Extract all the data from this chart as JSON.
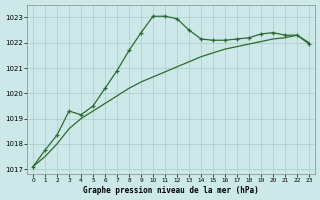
{
  "xlabel": "Graphe pression niveau de la mer (hPa)",
  "bg_color": "#cce8e8",
  "grid_color": "#aacccc",
  "line_color": "#2d6b2d",
  "ylim": [
    1016.8,
    1023.5
  ],
  "yticks": [
    1017,
    1018,
    1019,
    1020,
    1021,
    1022,
    1023
  ],
  "xlim": [
    -0.5,
    23.5
  ],
  "xticks": [
    0,
    1,
    2,
    3,
    4,
    5,
    6,
    7,
    8,
    9,
    10,
    11,
    12,
    13,
    14,
    15,
    16,
    17,
    18,
    19,
    20,
    21,
    22,
    23
  ],
  "series1_x": [
    0,
    1,
    2,
    3,
    4,
    5,
    6,
    7,
    8,
    9,
    10,
    11,
    12,
    13,
    14,
    15,
    16,
    17,
    18,
    19,
    20,
    21,
    22,
    23
  ],
  "series1_y": [
    1017.1,
    1017.75,
    1018.35,
    1019.3,
    1019.15,
    1019.5,
    1020.2,
    1020.9,
    1021.7,
    1022.4,
    1023.05,
    1023.05,
    1022.95,
    1022.5,
    1022.15,
    1022.1,
    1022.1,
    1022.15,
    1022.2,
    1022.35,
    1022.4,
    1022.3,
    1022.3,
    1021.95
  ],
  "series2_x": [
    0,
    1,
    2,
    3,
    4,
    5,
    6,
    7,
    8,
    9,
    10,
    11,
    12,
    13,
    14,
    15,
    16,
    17,
    18,
    19,
    20,
    21,
    22,
    23
  ],
  "series2_y": [
    1017.1,
    1017.5,
    1018.0,
    1018.6,
    1019.0,
    1019.3,
    1019.6,
    1019.9,
    1020.2,
    1020.45,
    1020.65,
    1020.85,
    1021.05,
    1021.25,
    1021.45,
    1021.6,
    1021.75,
    1021.85,
    1021.95,
    1022.05,
    1022.15,
    1022.2,
    1022.3,
    1022.0
  ],
  "figsize": [
    3.2,
    2.0
  ],
  "dpi": 100
}
